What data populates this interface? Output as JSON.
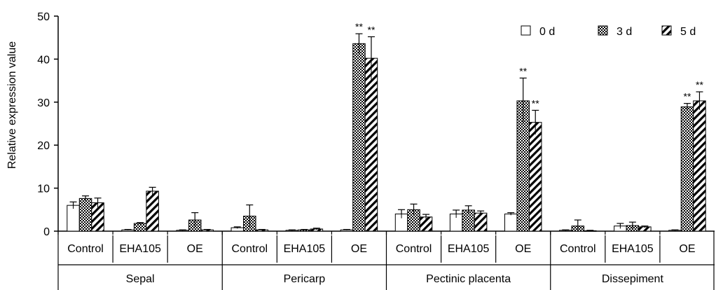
{
  "chart_data": {
    "type": "bar",
    "title": "",
    "xlabel": "",
    "ylabel": "Relative expression value",
    "ylim": [
      0,
      50
    ],
    "yticks": [
      0,
      10,
      20,
      30,
      40,
      50
    ],
    "grid": false,
    "legend_position": "top-right",
    "groups": [
      {
        "name": "Sepal",
        "categories": [
          "Control",
          "EHA105",
          "OE"
        ]
      },
      {
        "name": "Pericarp",
        "categories": [
          "Control",
          "EHA105",
          "OE"
        ]
      },
      {
        "name": "Pectinic placenta",
        "categories": [
          "Control",
          "EHA105",
          "OE"
        ]
      },
      {
        "name": "Dissepiment",
        "categories": [
          "Control",
          "EHA105",
          "OE"
        ]
      }
    ],
    "series": [
      {
        "name": "0 d",
        "pattern": "white",
        "values": [
          6.0,
          0.3,
          0.2,
          0.8,
          0.2,
          0.3,
          4.0,
          4.0,
          4.0,
          0.2,
          1.2,
          0.2
        ],
        "errors": [
          0.8,
          0.1,
          0.1,
          0.2,
          0.1,
          0.1,
          1.0,
          0.9,
          0.3,
          0.1,
          0.6,
          0.1
        ],
        "annotations": [
          "",
          "",
          "",
          "",
          "",
          "",
          "",
          "",
          "",
          "",
          "",
          ""
        ]
      },
      {
        "name": "3 d",
        "pattern": "crosshatch",
        "values": [
          7.6,
          1.8,
          2.6,
          3.5,
          0.3,
          43.6,
          5.0,
          4.9,
          30.3,
          1.2,
          1.3,
          28.9
        ],
        "errors": [
          0.6,
          0.2,
          1.7,
          2.6,
          0.1,
          2.3,
          1.3,
          1.0,
          5.3,
          1.4,
          0.8,
          0.8
        ],
        "annotations": [
          "",
          "",
          "",
          "",
          "",
          "**",
          "",
          "",
          "**",
          "",
          "",
          "**"
        ]
      },
      {
        "name": "5 d",
        "pattern": "diagonal",
        "values": [
          6.6,
          9.3,
          0.3,
          0.3,
          0.5,
          40.2,
          3.3,
          4.2,
          25.3,
          0.1,
          1.0,
          30.3
        ],
        "errors": [
          1.1,
          0.9,
          0.1,
          0.1,
          0.2,
          5.0,
          0.6,
          0.5,
          2.8,
          0.1,
          0.2,
          2.1
        ],
        "annotations": [
          "",
          "",
          "",
          "",
          "",
          "**",
          "",
          "",
          "**",
          "",
          "",
          "**"
        ]
      }
    ]
  }
}
